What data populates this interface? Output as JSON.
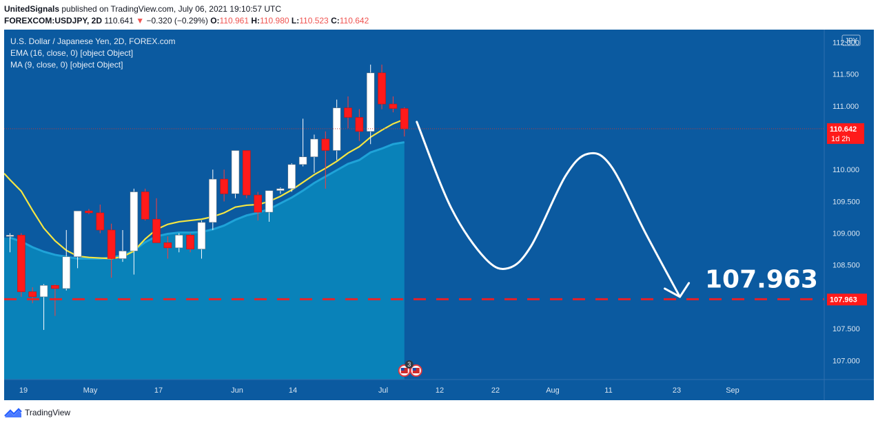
{
  "header": {
    "author": "UnitedSignals",
    "published_text": "published on TradingView.com, July 06, 2021 19:10:57 UTC",
    "symbol": "FOREXCOM:USDJPY, 2D",
    "price": "110.641",
    "change_arrow": "▼",
    "change": "−0.320 (−0.29%)",
    "o_label": "O:",
    "o": "110.961",
    "h_label": "H:",
    "h": "110.980",
    "l_label": "L:",
    "l": "110.523",
    "c_label": "C:",
    "c": "110.642"
  },
  "legend": {
    "title": "U.S. Dollar / Japanese Yen, 2D, FOREX.com",
    "ema": "EMA (16, close, 0) [object Object]",
    "ma": "MA (9, close, 0) [object Object]"
  },
  "footer": {
    "brand": "TradingView",
    "logo_icon": "tradingview-logo-icon"
  },
  "colors": {
    "background": "#0b5aa0",
    "up_candle": "#ffffff",
    "down_candle": "#ff1a1a",
    "ema_line": "#f5e642",
    "ma_area": "#0a85bb",
    "target_line": "#ff1a1a",
    "projection": "#ffffff",
    "price_badge": "#ff1a1a"
  },
  "chart_data": {
    "type": "candlestick",
    "currency_label": "JPY",
    "ylim": [
      106.7,
      112.2
    ],
    "yticks": [
      "112.000",
      "111.500",
      "111.000",
      "110.500",
      "110.000",
      "109.500",
      "109.000",
      "108.500",
      "108.000",
      "107.500",
      "107.000"
    ],
    "xticks": [
      "19",
      "May",
      "17",
      "Jun",
      "14",
      "Jul",
      "12",
      "22",
      "Aug",
      "11",
      "23",
      "Sep"
    ],
    "candles": [
      {
        "o": 108.95,
        "h": 109.0,
        "l": 108.7,
        "c": 108.97
      },
      {
        "o": 108.97,
        "h": 109.0,
        "l": 108.0,
        "c": 108.08
      },
      {
        "o": 108.08,
        "h": 108.15,
        "l": 107.9,
        "c": 108.0
      },
      {
        "o": 108.0,
        "h": 108.2,
        "l": 107.48,
        "c": 108.18
      },
      {
        "o": 108.18,
        "h": 108.2,
        "l": 107.7,
        "c": 108.13
      },
      {
        "o": 108.13,
        "h": 109.05,
        "l": 108.1,
        "c": 108.63
      },
      {
        "o": 108.63,
        "h": 109.35,
        "l": 108.45,
        "c": 109.35
      },
      {
        "o": 109.35,
        "h": 109.38,
        "l": 109.3,
        "c": 109.32
      },
      {
        "o": 109.32,
        "h": 109.45,
        "l": 109.0,
        "c": 109.05
      },
      {
        "o": 109.05,
        "h": 109.15,
        "l": 108.3,
        "c": 108.6
      },
      {
        "o": 108.6,
        "h": 109.05,
        "l": 108.55,
        "c": 108.72
      },
      {
        "o": 108.72,
        "h": 109.7,
        "l": 108.35,
        "c": 109.65
      },
      {
        "o": 109.65,
        "h": 109.7,
        "l": 109.2,
        "c": 109.22
      },
      {
        "o": 109.22,
        "h": 109.55,
        "l": 108.85,
        "c": 108.85
      },
      {
        "o": 108.85,
        "h": 108.95,
        "l": 108.6,
        "c": 108.77
      },
      {
        "o": 108.77,
        "h": 109.0,
        "l": 108.7,
        "c": 108.97
      },
      {
        "o": 108.97,
        "h": 109.0,
        "l": 108.7,
        "c": 108.75
      },
      {
        "o": 108.75,
        "h": 109.2,
        "l": 108.6,
        "c": 109.17
      },
      {
        "o": 109.17,
        "h": 110.0,
        "l": 109.05,
        "c": 109.85
      },
      {
        "o": 109.85,
        "h": 110.0,
        "l": 109.5,
        "c": 109.62
      },
      {
        "o": 109.62,
        "h": 110.3,
        "l": 109.55,
        "c": 110.3
      },
      {
        "o": 110.3,
        "h": 110.3,
        "l": 109.55,
        "c": 109.6
      },
      {
        "o": 109.6,
        "h": 109.65,
        "l": 109.2,
        "c": 109.33
      },
      {
        "o": 109.33,
        "h": 109.67,
        "l": 109.18,
        "c": 109.67
      },
      {
        "o": 109.67,
        "h": 109.72,
        "l": 109.62,
        "c": 109.7
      },
      {
        "o": 109.7,
        "h": 110.1,
        "l": 109.65,
        "c": 110.08
      },
      {
        "o": 110.08,
        "h": 110.8,
        "l": 110.05,
        "c": 110.2
      },
      {
        "o": 110.2,
        "h": 110.55,
        "l": 109.95,
        "c": 110.48
      },
      {
        "o": 110.48,
        "h": 110.6,
        "l": 109.7,
        "c": 110.3
      },
      {
        "o": 110.3,
        "h": 111.1,
        "l": 110.15,
        "c": 110.97
      },
      {
        "o": 110.97,
        "h": 111.15,
        "l": 110.65,
        "c": 110.82
      },
      {
        "o": 110.82,
        "h": 110.95,
        "l": 110.45,
        "c": 110.6
      },
      {
        "o": 110.6,
        "h": 111.65,
        "l": 110.4,
        "c": 111.52
      },
      {
        "o": 111.52,
        "h": 111.65,
        "l": 110.95,
        "c": 111.03
      },
      {
        "o": 111.03,
        "h": 111.15,
        "l": 110.9,
        "c": 110.96
      },
      {
        "o": 110.96,
        "h": 110.98,
        "l": 110.52,
        "c": 110.64
      }
    ],
    "ema_values": [
      109.84,
      109.66,
      109.36,
      109.08,
      108.88,
      108.73,
      108.64,
      108.62,
      108.61,
      108.6,
      108.63,
      108.72,
      108.91,
      109.06,
      109.14,
      109.18,
      109.2,
      109.22,
      109.26,
      109.32,
      109.41,
      109.44,
      109.45,
      109.5,
      109.58,
      109.68,
      109.8,
      109.92,
      110.02,
      110.13,
      110.26,
      110.36,
      110.51,
      110.62,
      110.72,
      110.79
    ],
    "ma_values": [
      108.93,
      108.87,
      108.78,
      108.71,
      108.66,
      108.63,
      108.6,
      108.6,
      108.6,
      108.62,
      108.65,
      108.73,
      108.86,
      108.95,
      108.99,
      109.01,
      109.01,
      109.02,
      109.06,
      109.12,
      109.21,
      109.28,
      109.32,
      109.38,
      109.47,
      109.56,
      109.67,
      109.79,
      109.89,
      109.99,
      110.09,
      110.15,
      110.27,
      110.33,
      110.4,
      110.43
    ],
    "last_price": 110.642,
    "last_price_label": "110.642",
    "countdown_label": "1d 2h",
    "target": 107.963,
    "target_label": "107.963",
    "target_axis_label": "107.963",
    "events_badge": "3",
    "projection_path": [
      [
        0,
        110.75
      ],
      [
        3,
        109.4
      ],
      [
        6,
        108.6
      ],
      [
        8,
        108.45
      ],
      [
        10,
        108.8
      ],
      [
        13,
        109.9
      ],
      [
        15,
        110.25
      ],
      [
        17,
        110.05
      ],
      [
        20,
        109.0
      ],
      [
        23,
        108.0
      ]
    ]
  }
}
